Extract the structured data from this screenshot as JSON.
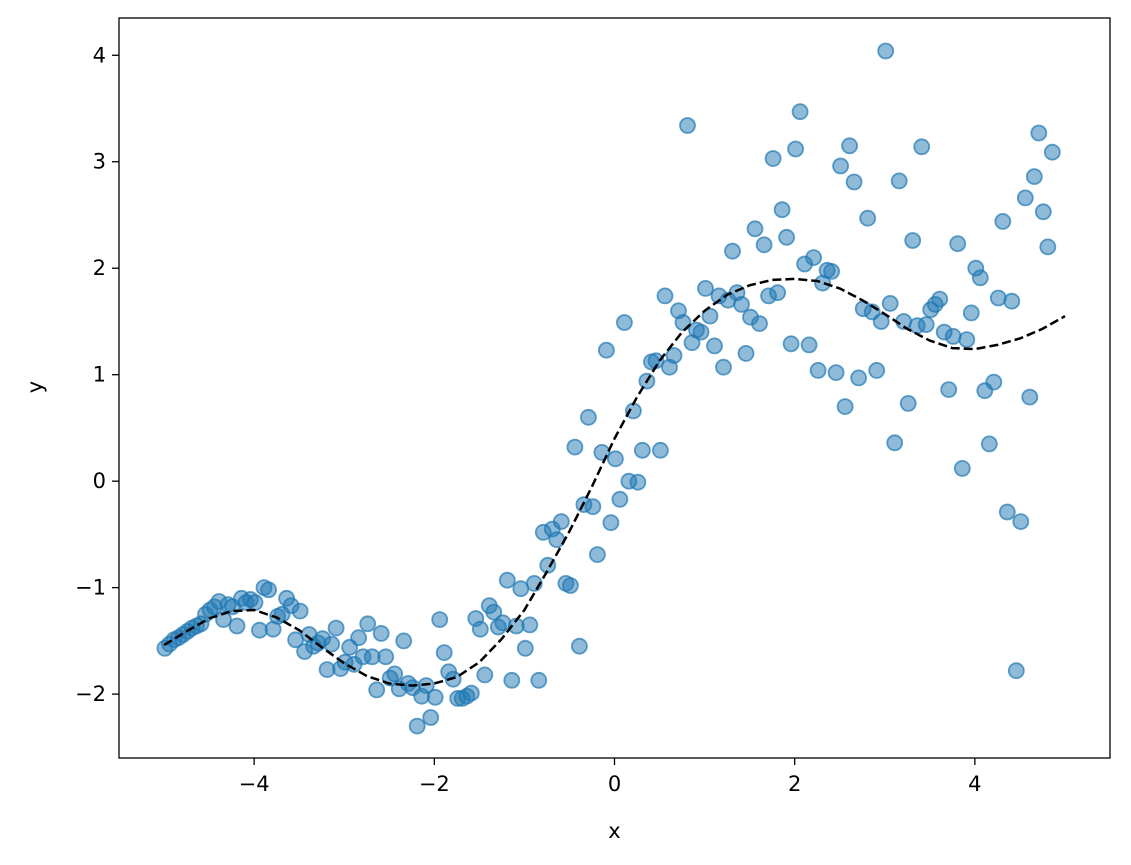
{
  "chart_data": {
    "type": "scatter",
    "title": "",
    "xlabel": "x",
    "ylabel": "y",
    "xlim": [
      -5.5,
      5.5
    ],
    "ylim": [
      -2.6,
      4.35
    ],
    "grid": false,
    "legend": "none",
    "xticks": [
      -4,
      -2,
      0,
      2,
      4
    ],
    "xtick_labels": [
      "−4",
      "−2",
      "0",
      "2",
      "4"
    ],
    "yticks": [
      -2,
      -1,
      0,
      1,
      2,
      3,
      4
    ],
    "ytick_labels": [
      "−2",
      "−1",
      "0",
      "1",
      "2",
      "3",
      "4"
    ],
    "colors": {
      "points": "#1f77b4",
      "trend": "#000000"
    },
    "series": [
      {
        "kind": "scatter",
        "points": [
          [
            -4.99,
            -1.57
          ],
          [
            -4.94,
            -1.53
          ],
          [
            -4.89,
            -1.49
          ],
          [
            -4.84,
            -1.47
          ],
          [
            -4.79,
            -1.44
          ],
          [
            -4.74,
            -1.41
          ],
          [
            -4.69,
            -1.38
          ],
          [
            -4.64,
            -1.36
          ],
          [
            -4.59,
            -1.34
          ],
          [
            -4.54,
            -1.25
          ],
          [
            -4.49,
            -1.21
          ],
          [
            -4.44,
            -1.18
          ],
          [
            -4.39,
            -1.13
          ],
          [
            -4.34,
            -1.3
          ],
          [
            -4.29,
            -1.16
          ],
          [
            -4.24,
            -1.18
          ],
          [
            -4.19,
            -1.36
          ],
          [
            -4.14,
            -1.1
          ],
          [
            -4.09,
            -1.14
          ],
          [
            -4.04,
            -1.11
          ],
          [
            -3.99,
            -1.14
          ],
          [
            -3.94,
            -1.4
          ],
          [
            -3.89,
            -1.0
          ],
          [
            -3.84,
            -1.02
          ],
          [
            -3.79,
            -1.39
          ],
          [
            -3.74,
            -1.27
          ],
          [
            -3.69,
            -1.25
          ],
          [
            -3.64,
            -1.1
          ],
          [
            -3.59,
            -1.17
          ],
          [
            -3.54,
            -1.49
          ],
          [
            -3.49,
            -1.22
          ],
          [
            -3.44,
            -1.6
          ],
          [
            -3.39,
            -1.44
          ],
          [
            -3.34,
            -1.55
          ],
          [
            -3.29,
            -1.52
          ],
          [
            -3.24,
            -1.48
          ],
          [
            -3.19,
            -1.77
          ],
          [
            -3.14,
            -1.53
          ],
          [
            -3.09,
            -1.38
          ],
          [
            -3.04,
            -1.76
          ],
          [
            -2.99,
            -1.7
          ],
          [
            -2.94,
            -1.56
          ],
          [
            -2.89,
            -1.72
          ],
          [
            -2.84,
            -1.47
          ],
          [
            -2.79,
            -1.65
          ],
          [
            -2.74,
            -1.34
          ],
          [
            -2.69,
            -1.65
          ],
          [
            -2.64,
            -1.96
          ],
          [
            -2.59,
            -1.43
          ],
          [
            -2.54,
            -1.65
          ],
          [
            -2.49,
            -1.85
          ],
          [
            -2.44,
            -1.81
          ],
          [
            -2.39,
            -1.95
          ],
          [
            -2.34,
            -1.5
          ],
          [
            -2.29,
            -1.9
          ],
          [
            -2.24,
            -1.94
          ],
          [
            -2.19,
            -2.3
          ],
          [
            -2.14,
            -2.02
          ],
          [
            -2.09,
            -1.92
          ],
          [
            -2.04,
            -2.22
          ],
          [
            -1.99,
            -2.03
          ],
          [
            -1.94,
            -1.3
          ],
          [
            -1.89,
            -1.61
          ],
          [
            -1.84,
            -1.79
          ],
          [
            -1.79,
            -1.86
          ],
          [
            -1.74,
            -2.04
          ],
          [
            -1.69,
            -2.04
          ],
          [
            -1.64,
            -2.02
          ],
          [
            -1.59,
            -1.99
          ],
          [
            -1.54,
            -1.29
          ],
          [
            -1.49,
            -1.39
          ],
          [
            -1.44,
            -1.82
          ],
          [
            -1.39,
            -1.17
          ],
          [
            -1.34,
            -1.23
          ],
          [
            -1.29,
            -1.37
          ],
          [
            -1.24,
            -1.33
          ],
          [
            -1.19,
            -0.93
          ],
          [
            -1.14,
            -1.87
          ],
          [
            -1.09,
            -1.36
          ],
          [
            -1.04,
            -1.01
          ],
          [
            -0.99,
            -1.57
          ],
          [
            -0.94,
            -1.35
          ],
          [
            -0.89,
            -0.96
          ],
          [
            -0.84,
            -1.87
          ],
          [
            -0.79,
            -0.48
          ],
          [
            -0.74,
            -0.79
          ],
          [
            -0.69,
            -0.45
          ],
          [
            -0.64,
            -0.55
          ],
          [
            -0.59,
            -0.38
          ],
          [
            -0.54,
            -0.96
          ],
          [
            -0.49,
            -0.98
          ],
          [
            -0.44,
            0.32
          ],
          [
            -0.39,
            -1.55
          ],
          [
            -0.34,
            -0.22
          ],
          [
            -0.29,
            0.6
          ],
          [
            -0.24,
            -0.24
          ],
          [
            -0.19,
            -0.69
          ],
          [
            -0.14,
            0.27
          ],
          [
            -0.09,
            1.23
          ],
          [
            -0.04,
            -0.39
          ],
          [
            0.01,
            0.21
          ],
          [
            0.06,
            -0.17
          ],
          [
            0.11,
            1.49
          ],
          [
            0.16,
            0.0
          ],
          [
            0.21,
            0.66
          ],
          [
            0.26,
            -0.01
          ],
          [
            0.31,
            0.29
          ],
          [
            0.36,
            0.94
          ],
          [
            0.41,
            1.12
          ],
          [
            0.46,
            1.13
          ],
          [
            0.51,
            0.29
          ],
          [
            0.56,
            1.74
          ],
          [
            0.61,
            1.07
          ],
          [
            0.66,
            1.18
          ],
          [
            0.71,
            1.6
          ],
          [
            0.76,
            1.49
          ],
          [
            0.81,
            3.34
          ],
          [
            0.86,
            1.3
          ],
          [
            0.91,
            1.42
          ],
          [
            0.96,
            1.4
          ],
          [
            1.01,
            1.81
          ],
          [
            1.06,
            1.55
          ],
          [
            1.11,
            1.27
          ],
          [
            1.16,
            1.74
          ],
          [
            1.21,
            1.07
          ],
          [
            1.26,
            1.7
          ],
          [
            1.31,
            2.16
          ],
          [
            1.36,
            1.77
          ],
          [
            1.41,
            1.66
          ],
          [
            1.46,
            1.2
          ],
          [
            1.51,
            1.54
          ],
          [
            1.56,
            2.37
          ],
          [
            1.61,
            1.48
          ],
          [
            1.66,
            2.22
          ],
          [
            1.71,
            1.74
          ],
          [
            1.76,
            3.03
          ],
          [
            1.81,
            1.77
          ],
          [
            1.86,
            2.55
          ],
          [
            1.91,
            2.29
          ],
          [
            1.96,
            1.29
          ],
          [
            2.01,
            3.12
          ],
          [
            2.06,
            3.47
          ],
          [
            2.11,
            2.04
          ],
          [
            2.16,
            1.28
          ],
          [
            2.21,
            2.1
          ],
          [
            2.26,
            1.04
          ],
          [
            2.31,
            1.86
          ],
          [
            2.36,
            1.98
          ],
          [
            2.41,
            1.97
          ],
          [
            2.46,
            1.02
          ],
          [
            2.51,
            2.96
          ],
          [
            2.56,
            0.7
          ],
          [
            2.61,
            3.15
          ],
          [
            2.66,
            2.81
          ],
          [
            2.71,
            0.97
          ],
          [
            2.76,
            1.62
          ],
          [
            2.81,
            2.47
          ],
          [
            2.86,
            1.59
          ],
          [
            2.91,
            1.04
          ],
          [
            2.96,
            1.5
          ],
          [
            3.01,
            4.04
          ],
          [
            3.06,
            1.67
          ],
          [
            3.11,
            0.36
          ],
          [
            3.16,
            2.82
          ],
          [
            3.21,
            1.5
          ],
          [
            3.26,
            0.73
          ],
          [
            3.31,
            2.26
          ],
          [
            3.36,
            1.46
          ],
          [
            3.41,
            3.14
          ],
          [
            3.46,
            1.47
          ],
          [
            3.51,
            1.61
          ],
          [
            3.56,
            1.66
          ],
          [
            3.61,
            1.71
          ],
          [
            3.66,
            1.4
          ],
          [
            3.71,
            0.86
          ],
          [
            3.76,
            1.36
          ],
          [
            3.81,
            2.23
          ],
          [
            3.86,
            0.12
          ],
          [
            3.91,
            1.33
          ],
          [
            3.96,
            1.58
          ],
          [
            4.01,
            2.0
          ],
          [
            4.06,
            1.91
          ],
          [
            4.11,
            0.85
          ],
          [
            4.16,
            0.35
          ],
          [
            4.21,
            0.93
          ],
          [
            4.26,
            1.72
          ],
          [
            4.31,
            2.44
          ],
          [
            4.36,
            -0.29
          ],
          [
            4.41,
            1.69
          ],
          [
            4.46,
            -1.78
          ],
          [
            4.51,
            -0.38
          ],
          [
            4.56,
            2.66
          ],
          [
            4.61,
            0.79
          ],
          [
            4.66,
            2.86
          ],
          [
            4.71,
            3.27
          ],
          [
            4.76,
            2.53
          ],
          [
            4.81,
            2.2
          ],
          [
            4.86,
            3.09
          ]
        ]
      },
      {
        "kind": "line",
        "style": "dashed",
        "x": [
          -5.0,
          -4.75,
          -4.5,
          -4.25,
          -4.0,
          -3.75,
          -3.5,
          -3.25,
          -3.0,
          -2.75,
          -2.5,
          -2.25,
          -2.0,
          -1.75,
          -1.5,
          -1.25,
          -1.0,
          -0.75,
          -0.5,
          -0.25,
          0.0,
          0.25,
          0.5,
          0.75,
          1.0,
          1.25,
          1.5,
          1.75,
          2.0,
          2.25,
          2.5,
          2.75,
          3.0,
          3.25,
          3.5,
          3.75,
          4.0,
          4.25,
          4.5,
          4.75,
          5.0
        ],
        "y": [
          -1.54,
          -1.41,
          -1.29,
          -1.22,
          -1.21,
          -1.28,
          -1.4,
          -1.56,
          -1.71,
          -1.83,
          -1.9,
          -1.92,
          -1.9,
          -1.84,
          -1.7,
          -1.48,
          -1.21,
          -0.85,
          -0.47,
          -0.05,
          0.4,
          0.79,
          1.13,
          1.4,
          1.6,
          1.75,
          1.84,
          1.89,
          1.9,
          1.88,
          1.81,
          1.7,
          1.57,
          1.43,
          1.32,
          1.25,
          1.24,
          1.28,
          1.34,
          1.43,
          1.55
        ]
      }
    ]
  }
}
